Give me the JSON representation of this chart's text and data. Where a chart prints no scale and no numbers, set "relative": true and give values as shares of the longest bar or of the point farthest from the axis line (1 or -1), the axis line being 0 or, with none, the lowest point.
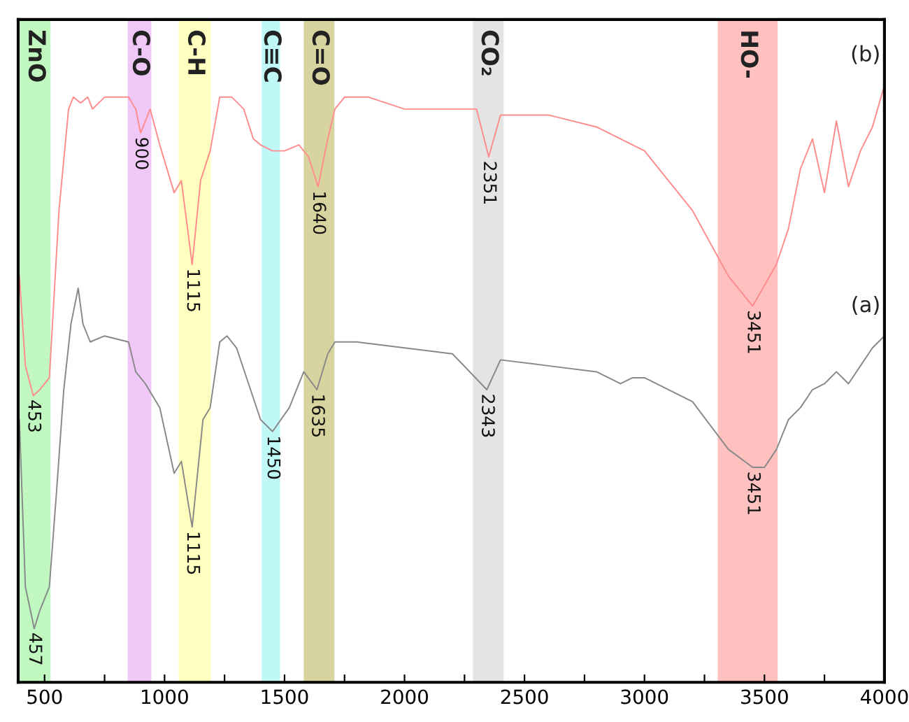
{
  "chart_data": {
    "type": "line",
    "relative": true,
    "xlim": [
      390,
      4000
    ],
    "xticks": [
      500,
      {
        "value": 750,
        "label": null
      },
      1000,
      {
        "value": 1250,
        "label": null
      },
      1500,
      {
        "value": 1750,
        "label": null
      },
      2000,
      {
        "value": 2250,
        "label": null
      },
      2500,
      {
        "value": 2750,
        "label": null
      },
      3000,
      {
        "value": 3250,
        "label": null
      },
      3500,
      {
        "value": 3750,
        "label": null
      },
      4000
    ],
    "grid": false,
    "legend": false,
    "tick_labels": "x",
    "marker": "none",
    "line_style": "solid",
    "series": [
      {
        "name": "(b)",
        "color": "#ff8c8c",
        "x": [
          395,
          420,
          453,
          480,
          520,
          560,
          600,
          620,
          650,
          680,
          700,
          750,
          850,
          880,
          900,
          940,
          980,
          1040,
          1070,
          1115,
          1150,
          1190,
          1230,
          1280,
          1330,
          1370,
          1400,
          1450,
          1500,
          1560,
          1600,
          1640,
          1680,
          1710,
          1750,
          1850,
          2000,
          2300,
          2351,
          2400,
          2600,
          2800,
          3000,
          3200,
          3350,
          3451,
          3550,
          3600,
          3650,
          3700,
          3750,
          3800,
          3850,
          3900,
          3950,
          4000
        ],
        "values": [
          0.68,
          0.53,
          0.48,
          0.49,
          0.51,
          0.79,
          0.96,
          0.98,
          0.97,
          0.98,
          0.96,
          0.98,
          0.98,
          0.96,
          0.92,
          0.96,
          0.9,
          0.82,
          0.84,
          0.7,
          0.84,
          0.89,
          0.98,
          0.98,
          0.96,
          0.91,
          0.9,
          0.89,
          0.89,
          0.9,
          0.88,
          0.83,
          0.91,
          0.96,
          0.98,
          0.98,
          0.96,
          0.96,
          0.88,
          0.95,
          0.95,
          0.93,
          0.89,
          0.79,
          0.68,
          0.63,
          0.7,
          0.76,
          0.86,
          0.91,
          0.82,
          0.94,
          0.83,
          0.89,
          0.93,
          1.0
        ]
      },
      {
        "name": "(a)",
        "color": "#888888",
        "x": [
          395,
          420,
          457,
          480,
          520,
          550,
          580,
          610,
          640,
          660,
          690,
          750,
          850,
          880,
          920,
          980,
          1040,
          1070,
          1115,
          1160,
          1190,
          1230,
          1260,
          1300,
          1350,
          1400,
          1450,
          1520,
          1580,
          1635,
          1680,
          1710,
          1800,
          2000,
          2200,
          2343,
          2400,
          2600,
          2800,
          2850,
          2900,
          2950,
          3000,
          3200,
          3350,
          3451,
          3500,
          3550,
          3600,
          3650,
          3700,
          3750,
          3800,
          3850,
          3900,
          3950,
          4000
        ],
        "values": [
          0.44,
          0.16,
          0.09,
          0.12,
          0.16,
          0.32,
          0.49,
          0.6,
          0.66,
          0.6,
          0.57,
          0.58,
          0.57,
          0.52,
          0.5,
          0.46,
          0.35,
          0.37,
          0.26,
          0.44,
          0.46,
          0.57,
          0.58,
          0.56,
          0.5,
          0.44,
          0.42,
          0.46,
          0.52,
          0.49,
          0.55,
          0.57,
          0.57,
          0.56,
          0.55,
          0.49,
          0.54,
          0.53,
          0.52,
          0.51,
          0.5,
          0.51,
          0.51,
          0.47,
          0.39,
          0.36,
          0.36,
          0.39,
          0.44,
          0.46,
          0.49,
          0.5,
          0.52,
          0.5,
          0.53,
          0.56,
          0.58
        ]
      }
    ],
    "bands": [
      {
        "axis": "x",
        "from": 397,
        "to": 525,
        "label": "ZnO",
        "color": "#c0f8c0"
      },
      {
        "axis": "x",
        "from": 846,
        "to": 945,
        "label": "C-O",
        "color": "#f0c8f8"
      },
      {
        "axis": "x",
        "from": 1059,
        "to": 1193,
        "label": "C-H",
        "color": "#ffffc0"
      },
      {
        "axis": "x",
        "from": 1405,
        "to": 1481,
        "label": "C≡C",
        "color": "#c0f8f8"
      },
      {
        "axis": "x",
        "from": 1580,
        "to": 1708,
        "label": "C=O",
        "color": "#d8d4a0"
      },
      {
        "axis": "x",
        "from": 2285,
        "to": 2413,
        "label": "CO₂",
        "color": "#e4e4e4"
      },
      {
        "axis": "x",
        "from": 3305,
        "to": 3555,
        "label": "HO-",
        "color": "#ffc0c0"
      }
    ],
    "annotations": [
      {
        "text": "453",
        "x": 453,
        "y": 0.48
      },
      {
        "text": "457",
        "x": 457,
        "y": 0.09
      },
      {
        "text": "900",
        "x": 900,
        "y": 0.92
      },
      {
        "text": "1115",
        "x": 1115,
        "y": 0.7
      },
      {
        "text": "1115",
        "x": 1115,
        "y": 0.26
      },
      {
        "text": "1450",
        "x": 1450,
        "y": 0.42
      },
      {
        "text": "1640",
        "x": 1640,
        "y": 0.83
      },
      {
        "text": "1635",
        "x": 1635,
        "y": 0.49
      },
      {
        "text": "2351",
        "x": 2351,
        "y": 0.88
      },
      {
        "text": "2343",
        "x": 2343,
        "y": 0.49
      },
      {
        "text": "3451",
        "x": 3451,
        "y": 0.63
      },
      {
        "text": "3451",
        "x": 3451,
        "y": 0.36
      }
    ]
  }
}
